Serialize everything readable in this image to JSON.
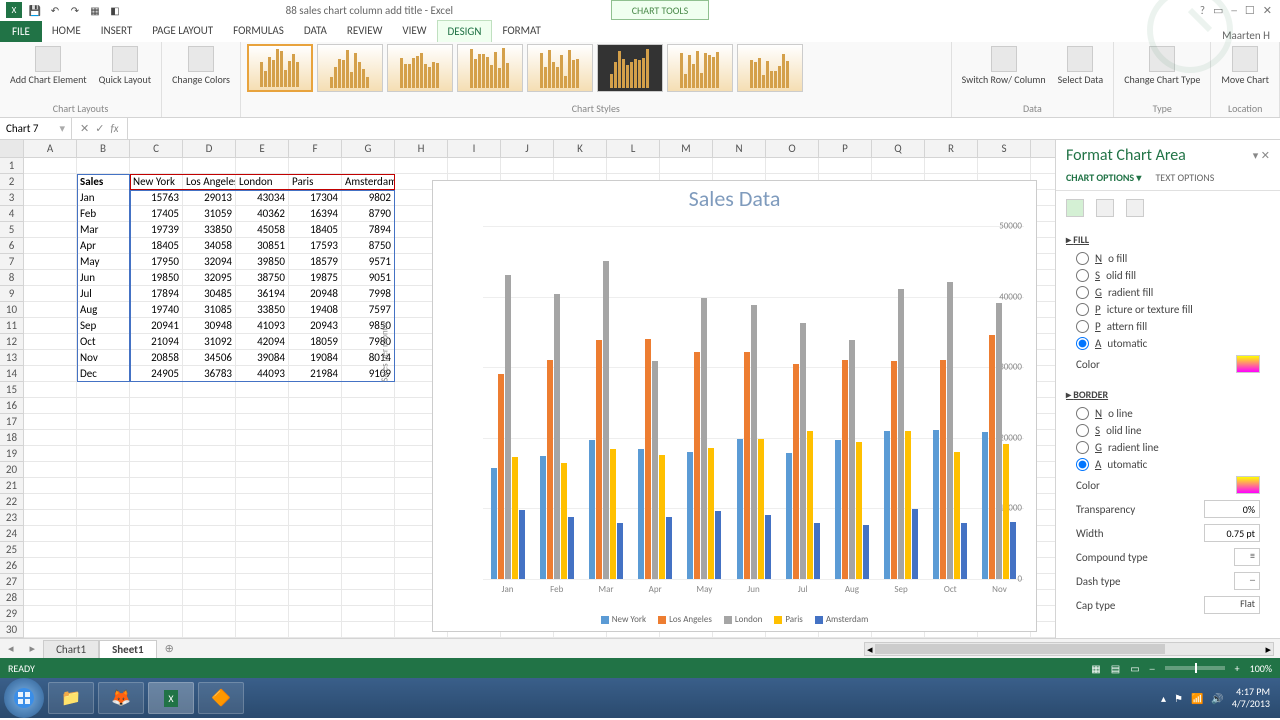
{
  "window": {
    "title": "88 sales chart column add title - Excel",
    "context_tab": "CHART TOOLS",
    "user": "Maarten H",
    "namebox": "Chart 7"
  },
  "tabs": {
    "file": "FILE",
    "list": [
      "HOME",
      "INSERT",
      "PAGE LAYOUT",
      "FORMULAS",
      "DATA",
      "REVIEW",
      "VIEW",
      "DESIGN",
      "FORMAT"
    ]
  },
  "ribbon": {
    "add_element": "Add Chart Element",
    "quick_layout": "Quick Layout",
    "change_colors": "Change Colors",
    "switch": "Switch Row/ Column",
    "select_data": "Select Data",
    "change_type": "Change Chart Type",
    "move_chart": "Move Chart",
    "g_layouts": "Chart Layouts",
    "g_styles": "Chart Styles",
    "g_data": "Data",
    "g_type": "Type",
    "g_loc": "Location"
  },
  "columns": [
    "A",
    "B",
    "C",
    "D",
    "E",
    "F",
    "G",
    "H",
    "I",
    "J",
    "K",
    "L",
    "M",
    "N",
    "O",
    "P",
    "Q",
    "R",
    "S"
  ],
  "rows_count": 31,
  "table": {
    "header_label": "Sales",
    "cities": [
      "New York",
      "Los Angeles",
      "London",
      "Paris",
      "Amsterdam"
    ],
    "months": [
      "Jan",
      "Feb",
      "Mar",
      "Apr",
      "May",
      "Jun",
      "Jul",
      "Aug",
      "Sep",
      "Oct",
      "Nov",
      "Dec"
    ],
    "values": [
      [
        15763,
        29013,
        43034,
        17304,
        9802
      ],
      [
        17405,
        31059,
        40362,
        16394,
        8790
      ],
      [
        19739,
        33850,
        45058,
        18405,
        7894
      ],
      [
        18405,
        34058,
        30851,
        17593,
        8750
      ],
      [
        17950,
        32094,
        39850,
        18579,
        9571
      ],
      [
        19850,
        32095,
        38750,
        19875,
        9051
      ],
      [
        17894,
        30485,
        36194,
        20948,
        7998
      ],
      [
        19740,
        31085,
        33850,
        19408,
        7597
      ],
      [
        20941,
        30948,
        41093,
        20943,
        9850
      ],
      [
        21094,
        31092,
        42094,
        18059,
        7980
      ],
      [
        20858,
        34506,
        39084,
        19084,
        8014
      ],
      [
        24905,
        36783,
        44093,
        21984,
        9109
      ]
    ]
  },
  "chart": {
    "title": "Sales Data",
    "y_label": "Sales per month",
    "y_max": 50000,
    "y_step": 10000,
    "colors": [
      "#5b9bd5",
      "#ed7d31",
      "#a5a5a5",
      "#ffc000",
      "#4472c4"
    ],
    "series": [
      "New York",
      "Los Angeles",
      "London",
      "Paris",
      "Amsterdam"
    ],
    "x_labels": [
      "Jan",
      "Feb",
      "Mar",
      "Apr",
      "May",
      "Jun",
      "Jul",
      "Aug",
      "Sep",
      "Oct",
      "Nov"
    ]
  },
  "format_pane": {
    "title": "Format Chart Area",
    "tab1": "CHART OPTIONS",
    "tab2": "TEXT OPTIONS",
    "fill_head": "FILL",
    "fill_options": [
      "No fill",
      "Solid fill",
      "Gradient fill",
      "Picture or texture fill",
      "Pattern fill",
      "Automatic"
    ],
    "fill_selected": 5,
    "color_label": "Color",
    "border_head": "BORDER",
    "border_options": [
      "No line",
      "Solid line",
      "Gradient line",
      "Automatic"
    ],
    "border_selected": 3,
    "transparency": "Transparency",
    "transparency_val": "0%",
    "width": "Width",
    "width_val": "0.75 pt",
    "compound": "Compound type",
    "dash": "Dash type",
    "cap": "Cap type",
    "cap_val": "Flat"
  },
  "sheets": {
    "tab1": "Chart1",
    "tab2": "Sheet1"
  },
  "status": {
    "ready": "READY",
    "zoom": "100%"
  },
  "taskbar": {
    "time": "4:17 PM",
    "date": "4/7/2013"
  }
}
